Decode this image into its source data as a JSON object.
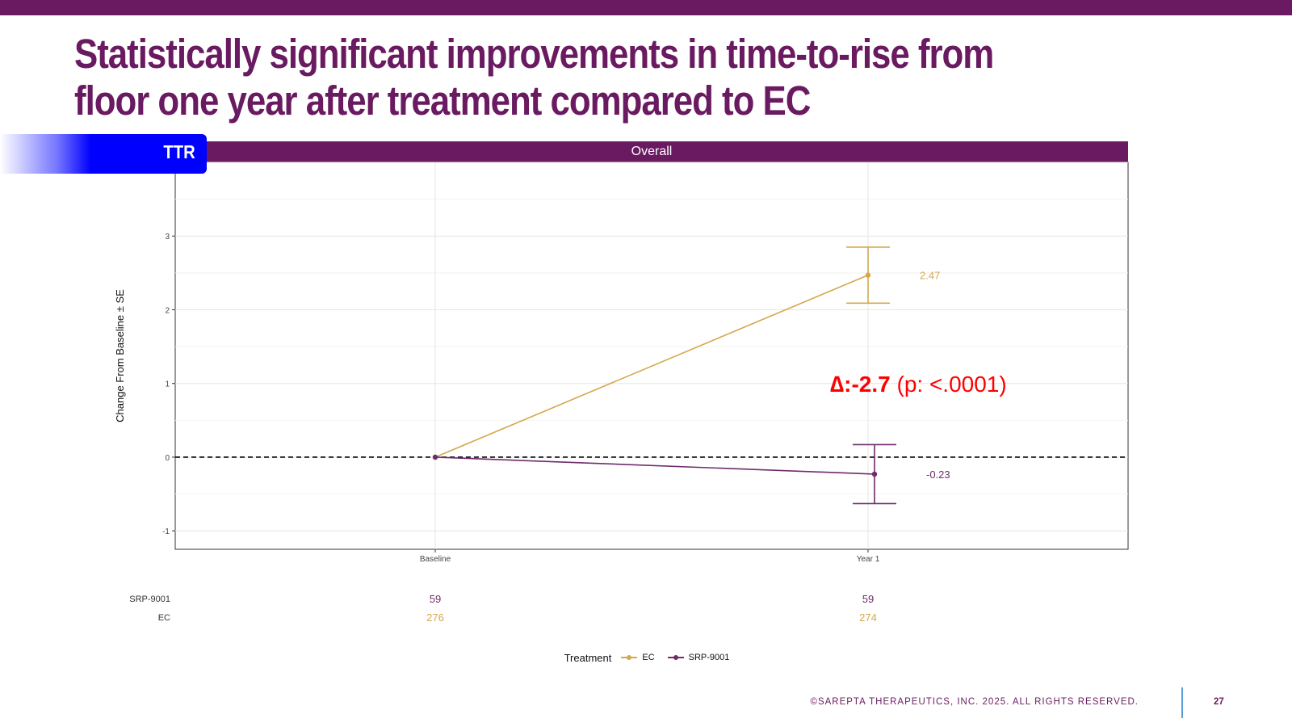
{
  "slide": {
    "title": "Statistically significant improvements in time-to-rise from floor one year after treatment compared to EC",
    "tab_label": "TTR",
    "facet_label": "Overall",
    "footer": "©SAREPTA THERAPEUTICS, INC. 2025.  ALL RIGHTS RESERVED.",
    "page_number": "27"
  },
  "colors": {
    "brand_purple": "#6a1a60",
    "ec_gold": "#d4a84b",
    "srp_purple": "#6f2b6b",
    "tab_blue": "#0000ff",
    "annotation_red": "#ff0000"
  },
  "chart_data": {
    "type": "line",
    "ylabel": "Change From Baseline ± SE",
    "xlabel": "",
    "categories": [
      "Baseline",
      "Year 1"
    ],
    "ylim": [
      -1.25,
      4.0
    ],
    "yticks": [
      -1,
      0,
      1,
      2,
      3,
      4
    ],
    "grid": true,
    "reference_line": 0,
    "series": [
      {
        "name": "EC",
        "color": "#d4a84b",
        "values": [
          0,
          2.47
        ],
        "se_bounds": [
          null,
          [
            2.09,
            2.85
          ]
        ],
        "value_labels": [
          null,
          "2.47"
        ],
        "n": [
          "276",
          "274"
        ]
      },
      {
        "name": "SRP-9001",
        "color": "#6f2b6b",
        "values": [
          0,
          -0.23
        ],
        "se_bounds": [
          null,
          [
            -0.63,
            0.17
          ]
        ],
        "value_labels": [
          null,
          "-0.23"
        ],
        "n": [
          "59",
          "59"
        ]
      }
    ],
    "annotation": {
      "symbol": "∆:",
      "value": "-2.7",
      "p_text": "(p: <.0001)"
    },
    "legend": {
      "title": "Treatment",
      "entries": [
        "EC",
        "SRP-9001"
      ],
      "position": "bottom"
    }
  }
}
